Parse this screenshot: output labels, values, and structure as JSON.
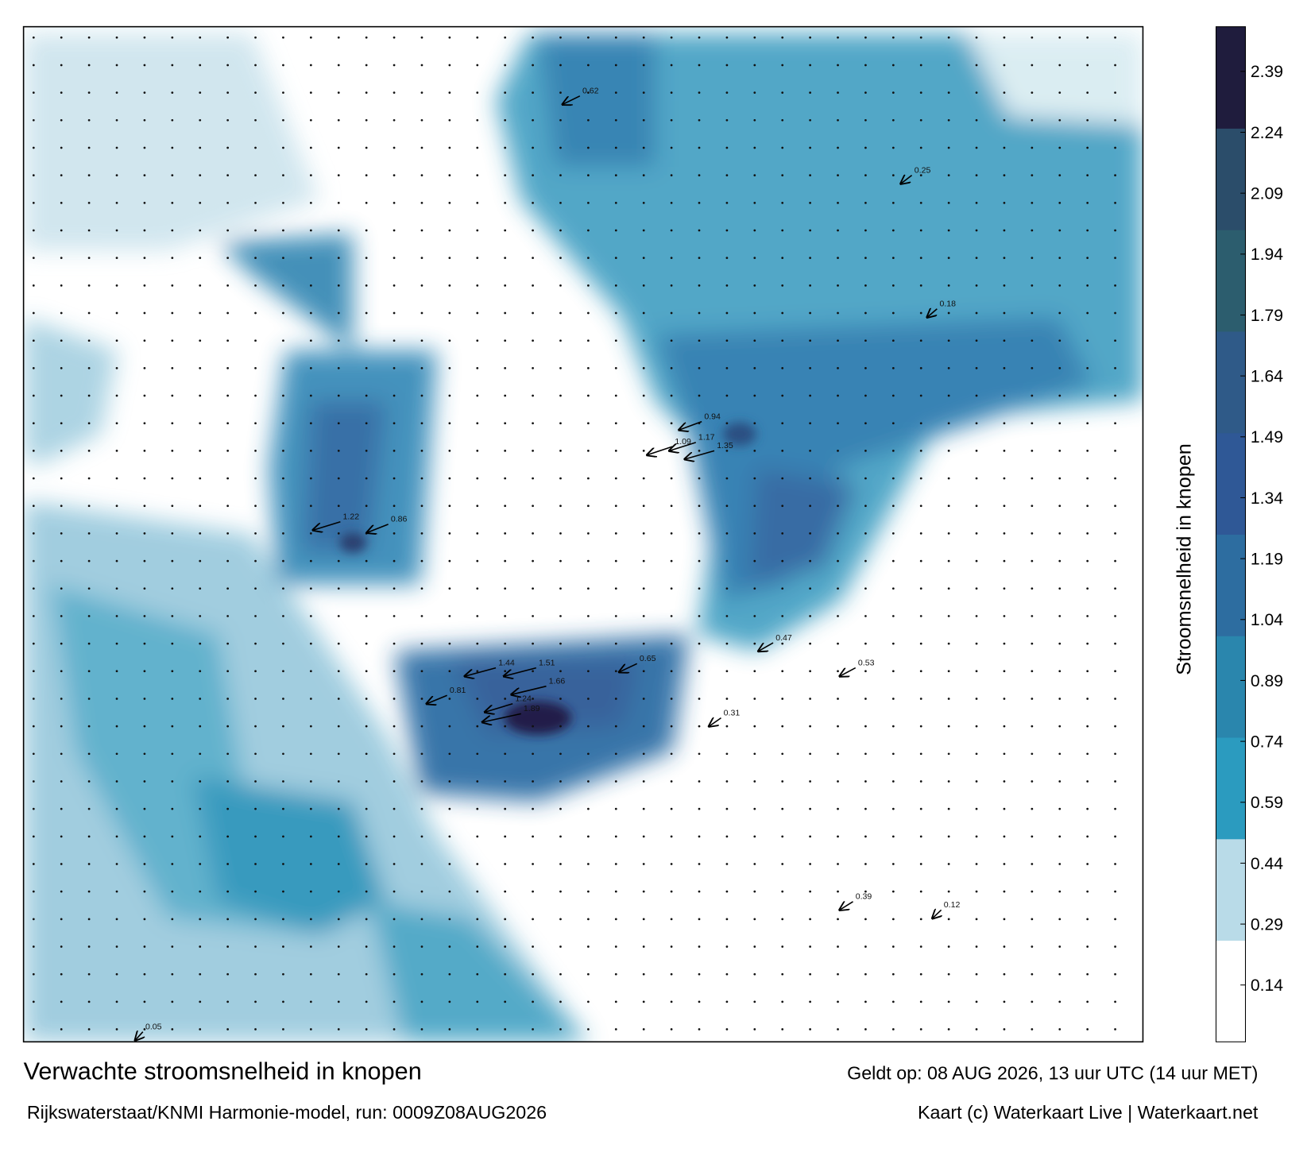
{
  "chart_data": {
    "type": "heatmap",
    "title": "Verwachte stroomsnelheid in knopen",
    "subtitle": "Rijkswaterstaat/KNMI Harmonie-model, run: 0009Z08AUG2026",
    "valid_time": "Geldt op: 08 AUG 2026, 13 uur UTC (14 uur MET)",
    "credit": "Kaart (c) Waterkaart Live | Waterkaart.net",
    "colorbar_label": "Stroomsnelheid in knopen",
    "clim": [
      0,
      2.5
    ],
    "cticks": [
      0.14,
      0.29,
      0.44,
      0.59,
      0.74,
      0.89,
      1.04,
      1.19,
      1.34,
      1.49,
      1.64,
      1.79,
      1.94,
      2.09,
      2.24,
      2.39
    ],
    "colors": [
      "#ffffff",
      "#b9dbe8",
      "#2b9bbf",
      "#2a86ad",
      "#2d6da0",
      "#2f5896",
      "#2f5a88",
      "#2c5d6e",
      "#2b4d6a",
      "#1f1c3d"
    ],
    "values": [
      1.44,
      1.51,
      1.66,
      1.89,
      1.24,
      1.22,
      1.35,
      1.17,
      1.09,
      0.94,
      0.86,
      0.81,
      0.65,
      0.62,
      0.53,
      0.47,
      0.39,
      0.31,
      0.25,
      0.18,
      0.12,
      0.05
    ]
  }
}
